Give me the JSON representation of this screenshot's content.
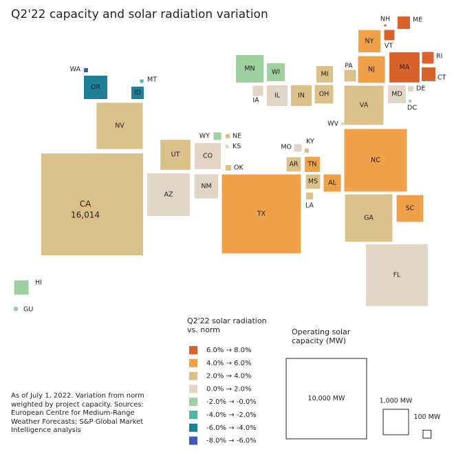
{
  "chart_data": {
    "type": "square-map",
    "title": "Q2'22 capacity and solar radiation variation",
    "categories": [
      "CA",
      "NV",
      "AZ",
      "UT",
      "CO",
      "NM",
      "TX",
      "NC",
      "GA",
      "FL",
      "SC",
      "VA",
      "MA",
      "NJ",
      "NY",
      "MN",
      "WI",
      "OR",
      "IL",
      "IN",
      "OH",
      "MI",
      "MD",
      "CT",
      "RI",
      "ME",
      "VT",
      "NH",
      "PA",
      "ID",
      "WA",
      "MT",
      "DE",
      "DC",
      "WY",
      "NE",
      "KS",
      "OK",
      "MO",
      "KY",
      "AR",
      "TN",
      "MS",
      "AL",
      "LA",
      "IA",
      "WV",
      "HI",
      "GU"
    ],
    "values": [
      16014,
      3300,
      2800,
      1400,
      1050,
      900,
      9650,
      6050,
      3480,
      5900,
      1100,
      2370,
      1400,
      1100,
      750,
      1170,
      490,
      850,
      660,
      660,
      530,
      420,
      490,
      290,
      210,
      240,
      165,
      7,
      210,
      240,
      26,
      18,
      47,
      12,
      90,
      26,
      18,
      47,
      90,
      26,
      320,
      350,
      320,
      460,
      73,
      165,
      12,
      320,
      26
    ],
    "value_labels": [
      "16,014",
      null,
      null,
      null,
      null,
      null,
      null,
      null,
      null,
      null,
      null,
      null,
      null,
      null,
      null,
      null,
      null,
      null,
      null,
      null,
      null,
      null,
      null,
      null,
      null,
      null,
      null,
      null,
      null,
      null,
      null,
      null,
      null,
      null,
      null,
      null,
      null,
      null,
      null,
      null,
      null,
      null,
      null,
      null,
      null,
      null,
      null,
      null,
      null
    ],
    "color_class": [
      2,
      2,
      3,
      2,
      3,
      3,
      1,
      1,
      2,
      3,
      1,
      2,
      0,
      1,
      1,
      4,
      4,
      6,
      3,
      2,
      2,
      2,
      3,
      0,
      0,
      0,
      0,
      0,
      2,
      6,
      7,
      5,
      3,
      4,
      4,
      2,
      3,
      2,
      3,
      2,
      2,
      1,
      2,
      1,
      2,
      3,
      3,
      4,
      4
    ],
    "legend": {
      "title": "Q2'22 solar radiation vs. norm",
      "items": [
        {
          "label": "6.0% → 8.0%",
          "color": "#d9622b"
        },
        {
          "label": "4.0% → 6.0%",
          "color": "#f0a048"
        },
        {
          "label": "2.0% → 4.0%",
          "color": "#dcc08a"
        },
        {
          "label": "0.0% → 2.0%",
          "color": "#e3d5c5"
        },
        {
          "label": "-2.0% → -0.0%",
          "color": "#9fd0a0"
        },
        {
          "label": "-4.0% → -2.0%",
          "color": "#4db8a0"
        },
        {
          "label": "-6.0% → -4.0%",
          "color": "#1e7f96"
        },
        {
          "label": "-8.0% → -6.0%",
          "color": "#3f5ab8"
        }
      ]
    },
    "size_legend": {
      "title": "Operating solar capacity (MW)",
      "items": [
        {
          "value": 10000,
          "label": "10,000 MW"
        },
        {
          "value": 1000,
          "label": "1,000 MW"
        },
        {
          "value": 100,
          "label": "100 MW"
        }
      ]
    },
    "note": "As of July 1, 2022. Variation from norm weighted by project capacity. Sources: European Centre for Medium-Range Weather Forecasts; S&P Global Market Intelligence analysis"
  }
}
